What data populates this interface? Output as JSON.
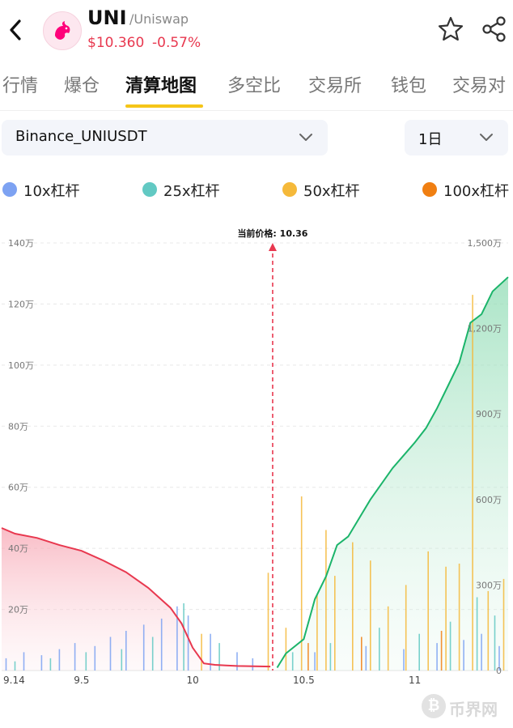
{
  "header": {
    "coin": "UNI",
    "coin_sub": "/Uniswap",
    "price": "$10.360",
    "change": "-0.57%",
    "icons": {
      "back": "chevron-left-icon",
      "star": "star-outline-icon",
      "share": "share-icon"
    },
    "colors": {
      "down": "#e8384f",
      "logo_bg": "#fde7ef",
      "logo_pink": "#ff007a"
    }
  },
  "tabs": {
    "items": [
      "行情",
      "爆仓",
      "清算地图",
      "多空比",
      "交易所",
      "钱包",
      "交易对"
    ],
    "active_index": 2,
    "active_color": "#f5c518"
  },
  "filters": {
    "pair": "Binance_UNIUSDT",
    "interval": "1日"
  },
  "legend": {
    "items": [
      {
        "label": "10x杠杆",
        "color": "#7da2f2"
      },
      {
        "label": "25x杠杆",
        "color": "#62c9c3"
      },
      {
        "label": "50x杠杆",
        "color": "#f5b93a"
      },
      {
        "label": "100x杠杆",
        "color": "#f07f12"
      }
    ]
  },
  "watermark": {
    "glyph": "₿",
    "text": "币界网"
  },
  "chart_data": {
    "type": "bar",
    "current_price_label": "当前价格: 10.36",
    "current_price": 10.36,
    "x_ticks": [
      "9.14",
      "9.5",
      "10",
      "10.5",
      "11"
    ],
    "x_tick_values": [
      9.14,
      9.5,
      10,
      10.5,
      11
    ],
    "xlim": [
      9.14,
      11.42
    ],
    "left_axis": {
      "ticks": [
        "20万",
        "40万",
        "60万",
        "80万",
        "100万",
        "120万",
        "140万"
      ],
      "tick_values": [
        200000,
        400000,
        600000,
        800000,
        1000000,
        1200000,
        1400000
      ],
      "ylim": [
        0,
        1400000
      ]
    },
    "right_axis": {
      "ticks": [
        "0",
        "300万",
        "600万",
        "900万",
        "1,200万",
        "1,500万"
      ],
      "tick_values": [
        0,
        3000000,
        6000000,
        9000000,
        12000000,
        15000000
      ],
      "ylim": [
        0,
        15000000
      ]
    },
    "grid": true,
    "long_cumulative": {
      "color": "#e8384f",
      "x": [
        9.14,
        9.2,
        9.3,
        9.4,
        9.5,
        9.6,
        9.7,
        9.8,
        9.9,
        9.95,
        10.0,
        10.05,
        10.1,
        10.15,
        10.2,
        10.35
      ],
      "y": [
        5000000,
        4800000,
        4650000,
        4400000,
        4200000,
        3850000,
        3450000,
        2900000,
        2200000,
        1650000,
        800000,
        250000,
        200000,
        180000,
        160000,
        140000
      ]
    },
    "short_cumulative": {
      "color": "#1bb46a",
      "x": [
        10.38,
        10.42,
        10.5,
        10.55,
        10.6,
        10.65,
        10.7,
        10.8,
        10.9,
        11.0,
        11.05,
        11.1,
        11.15,
        11.2,
        11.25,
        11.3,
        11.35,
        11.42
      ],
      "y": [
        100000,
        600000,
        1100000,
        2500000,
        3300000,
        4400000,
        4700000,
        6000000,
        7100000,
        8000000,
        8500000,
        9200000,
        10000000,
        10800000,
        12200000,
        12500000,
        13300000,
        13800000
      ]
    },
    "series": [
      {
        "name": "10x杠杆",
        "x": [
          9.16,
          9.24,
          9.32,
          9.4,
          9.47,
          9.56,
          9.63,
          9.7,
          9.78,
          9.86,
          9.93,
          9.98,
          10.08,
          10.2,
          10.27,
          10.55,
          10.78,
          10.95,
          11.1,
          11.22,
          11.3,
          11.38
        ],
        "y": [
          40000,
          60000,
          50000,
          70000,
          90000,
          80000,
          110000,
          130000,
          150000,
          170000,
          210000,
          180000,
          120000,
          60000,
          40000,
          60000,
          80000,
          70000,
          90000,
          100000,
          120000,
          80000
        ]
      },
      {
        "name": "25x杠杆",
        "x": [
          9.2,
          9.36,
          9.52,
          9.68,
          9.82,
          9.96,
          10.12,
          10.45,
          10.62,
          10.84,
          11.02,
          11.16,
          11.28,
          11.36
        ],
        "y": [
          30000,
          40000,
          60000,
          70000,
          110000,
          220000,
          90000,
          60000,
          90000,
          140000,
          120000,
          160000,
          240000,
          180000
        ]
      },
      {
        "name": "50x杠杆",
        "x": [
          10.04,
          10.34,
          10.42,
          10.49,
          10.56,
          10.6,
          10.64,
          10.72,
          10.8,
          10.88,
          10.96,
          11.06,
          11.14,
          11.2,
          11.26,
          11.33,
          11.4
        ],
        "y": [
          120000,
          320000,
          140000,
          570000,
          250000,
          460000,
          310000,
          420000,
          360000,
          210000,
          280000,
          390000,
          340000,
          350000,
          1230000,
          260000,
          300000
        ]
      },
      {
        "name": "100x杠杆",
        "x": [
          10.52,
          10.76,
          11.12
        ],
        "y": [
          90000,
          110000,
          130000
        ]
      }
    ]
  }
}
